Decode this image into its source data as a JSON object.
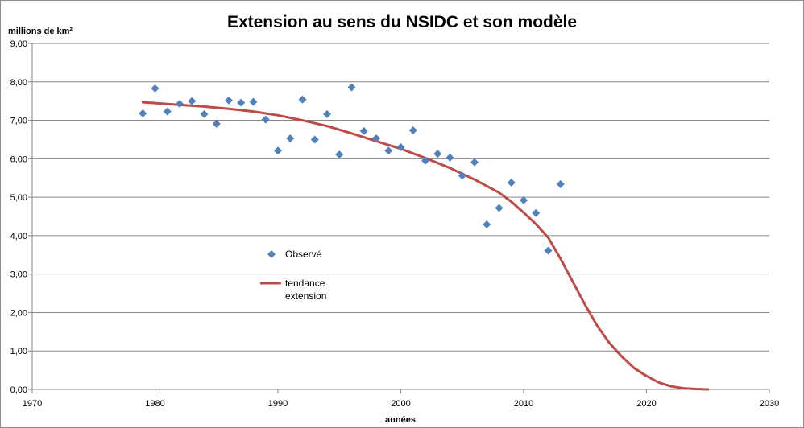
{
  "chart_data": {
    "type": "scatter",
    "title": "Extension au sens du NSIDC et son modèle",
    "xlabel": "années",
    "ylabel": "millions de km²",
    "xlim": [
      1970,
      2030
    ],
    "ylim": [
      0,
      9
    ],
    "x_ticks": [
      "1970",
      "1980",
      "1990",
      "2000",
      "2010",
      "2020",
      "2030"
    ],
    "y_ticks": [
      "0,00",
      "1,00",
      "2,00",
      "3,00",
      "4,00",
      "5,00",
      "6,00",
      "7,00",
      "8,00",
      "9,00"
    ],
    "grid": "horizontal",
    "legend_position": "center-left",
    "series": [
      {
        "name": "Observé",
        "kind": "scatter",
        "marker": "diamond",
        "color": "#4f81bd",
        "x": [
          1979,
          1980,
          1981,
          1982,
          1983,
          1984,
          1985,
          1986,
          1987,
          1988,
          1989,
          1990,
          1991,
          1992,
          1993,
          1994,
          1995,
          1996,
          1997,
          1998,
          1999,
          2000,
          2001,
          2002,
          2003,
          2004,
          2005,
          2006,
          2007,
          2008,
          2009,
          2010,
          2011,
          2012,
          2013
        ],
        "y": [
          7.18,
          7.83,
          7.23,
          7.43,
          7.5,
          7.16,
          6.91,
          7.52,
          7.46,
          7.48,
          7.02,
          6.21,
          6.53,
          7.54,
          6.5,
          7.16,
          6.11,
          7.86,
          6.72,
          6.53,
          6.21,
          6.3,
          6.74,
          5.95,
          6.13,
          6.03,
          5.56,
          5.91,
          4.29,
          4.72,
          5.38,
          4.92,
          4.59,
          3.61,
          5.34
        ]
      },
      {
        "name": "tendance extension",
        "legend_lines": [
          "tendance",
          "extension"
        ],
        "kind": "line",
        "color": "#be4b48",
        "x": [
          1979,
          1980,
          1982,
          1984,
          1986,
          1988,
          1990,
          1992,
          1994,
          1996,
          1998,
          2000,
          2002,
          2004,
          2006,
          2008,
          2009,
          2010,
          2011,
          2012,
          2013,
          2014,
          2015,
          2016,
          2017,
          2018,
          2019,
          2020,
          2021,
          2022,
          2023,
          2024,
          2025
        ],
        "y": [
          7.47,
          7.45,
          7.4,
          7.36,
          7.3,
          7.23,
          7.13,
          7.0,
          6.85,
          6.66,
          6.46,
          6.26,
          6.02,
          5.76,
          5.46,
          5.12,
          4.88,
          4.6,
          4.3,
          3.95,
          3.4,
          2.8,
          2.2,
          1.65,
          1.2,
          0.85,
          0.55,
          0.35,
          0.18,
          0.08,
          0.03,
          0.01,
          0.0
        ]
      }
    ]
  }
}
